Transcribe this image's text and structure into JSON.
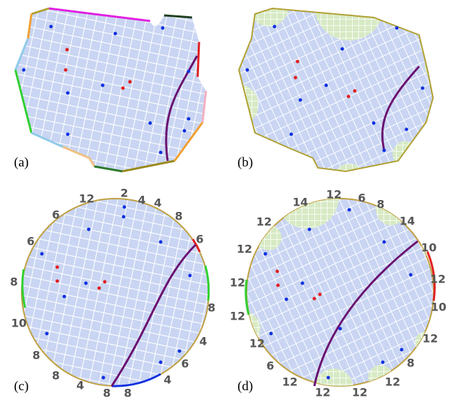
{
  "panels": [
    {
      "label": "(a)"
    },
    {
      "label": "(b)"
    },
    {
      "label": "(c)",
      "edge_labels": [
        12,
        2,
        4,
        4,
        6,
        8,
        6,
        8,
        4,
        6,
        4,
        8,
        8,
        4,
        8,
        8,
        10,
        8,
        6
      ]
    },
    {
      "label": "(d)",
      "edge_labels": [
        12,
        6,
        8,
        14,
        10,
        12,
        10,
        12,
        8,
        12,
        12,
        12,
        12,
        6,
        12,
        12,
        12,
        12,
        12,
        14
      ]
    }
  ]
}
